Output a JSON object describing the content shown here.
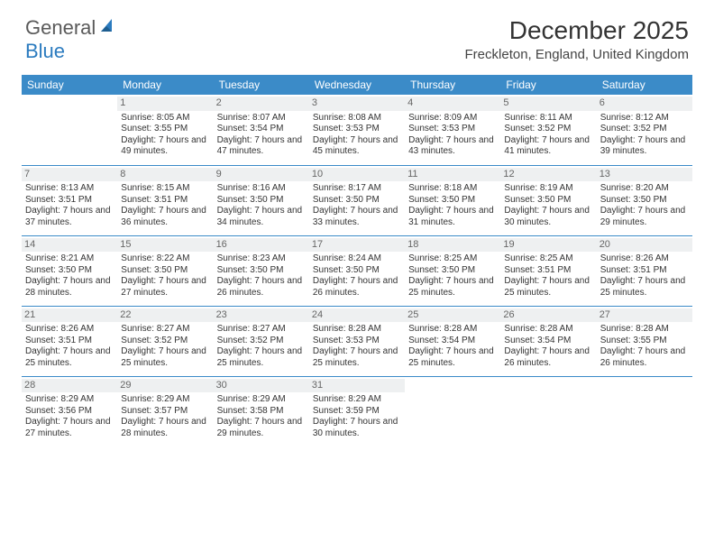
{
  "logo": {
    "part1": "General",
    "part2": "Blue"
  },
  "title": "December 2025",
  "location": "Freckleton, England, United Kingdom",
  "colors": {
    "header_bg": "#3b8bc8",
    "header_text": "#ffffff",
    "daynum_bg": "#eef0f1",
    "row_divider": "#3b8bc8",
    "logo_gray": "#5a5a5a",
    "logo_blue": "#2b7bbf",
    "body_text": "#333333"
  },
  "weekdays": [
    "Sunday",
    "Monday",
    "Tuesday",
    "Wednesday",
    "Thursday",
    "Friday",
    "Saturday"
  ],
  "weeks": [
    [
      null,
      {
        "n": "1",
        "sr": "Sunrise: 8:05 AM",
        "ss": "Sunset: 3:55 PM",
        "dl": "Daylight: 7 hours and 49 minutes."
      },
      {
        "n": "2",
        "sr": "Sunrise: 8:07 AM",
        "ss": "Sunset: 3:54 PM",
        "dl": "Daylight: 7 hours and 47 minutes."
      },
      {
        "n": "3",
        "sr": "Sunrise: 8:08 AM",
        "ss": "Sunset: 3:53 PM",
        "dl": "Daylight: 7 hours and 45 minutes."
      },
      {
        "n": "4",
        "sr": "Sunrise: 8:09 AM",
        "ss": "Sunset: 3:53 PM",
        "dl": "Daylight: 7 hours and 43 minutes."
      },
      {
        "n": "5",
        "sr": "Sunrise: 8:11 AM",
        "ss": "Sunset: 3:52 PM",
        "dl": "Daylight: 7 hours and 41 minutes."
      },
      {
        "n": "6",
        "sr": "Sunrise: 8:12 AM",
        "ss": "Sunset: 3:52 PM",
        "dl": "Daylight: 7 hours and 39 minutes."
      }
    ],
    [
      {
        "n": "7",
        "sr": "Sunrise: 8:13 AM",
        "ss": "Sunset: 3:51 PM",
        "dl": "Daylight: 7 hours and 37 minutes."
      },
      {
        "n": "8",
        "sr": "Sunrise: 8:15 AM",
        "ss": "Sunset: 3:51 PM",
        "dl": "Daylight: 7 hours and 36 minutes."
      },
      {
        "n": "9",
        "sr": "Sunrise: 8:16 AM",
        "ss": "Sunset: 3:50 PM",
        "dl": "Daylight: 7 hours and 34 minutes."
      },
      {
        "n": "10",
        "sr": "Sunrise: 8:17 AM",
        "ss": "Sunset: 3:50 PM",
        "dl": "Daylight: 7 hours and 33 minutes."
      },
      {
        "n": "11",
        "sr": "Sunrise: 8:18 AM",
        "ss": "Sunset: 3:50 PM",
        "dl": "Daylight: 7 hours and 31 minutes."
      },
      {
        "n": "12",
        "sr": "Sunrise: 8:19 AM",
        "ss": "Sunset: 3:50 PM",
        "dl": "Daylight: 7 hours and 30 minutes."
      },
      {
        "n": "13",
        "sr": "Sunrise: 8:20 AM",
        "ss": "Sunset: 3:50 PM",
        "dl": "Daylight: 7 hours and 29 minutes."
      }
    ],
    [
      {
        "n": "14",
        "sr": "Sunrise: 8:21 AM",
        "ss": "Sunset: 3:50 PM",
        "dl": "Daylight: 7 hours and 28 minutes."
      },
      {
        "n": "15",
        "sr": "Sunrise: 8:22 AM",
        "ss": "Sunset: 3:50 PM",
        "dl": "Daylight: 7 hours and 27 minutes."
      },
      {
        "n": "16",
        "sr": "Sunrise: 8:23 AM",
        "ss": "Sunset: 3:50 PM",
        "dl": "Daylight: 7 hours and 26 minutes."
      },
      {
        "n": "17",
        "sr": "Sunrise: 8:24 AM",
        "ss": "Sunset: 3:50 PM",
        "dl": "Daylight: 7 hours and 26 minutes."
      },
      {
        "n": "18",
        "sr": "Sunrise: 8:25 AM",
        "ss": "Sunset: 3:50 PM",
        "dl": "Daylight: 7 hours and 25 minutes."
      },
      {
        "n": "19",
        "sr": "Sunrise: 8:25 AM",
        "ss": "Sunset: 3:51 PM",
        "dl": "Daylight: 7 hours and 25 minutes."
      },
      {
        "n": "20",
        "sr": "Sunrise: 8:26 AM",
        "ss": "Sunset: 3:51 PM",
        "dl": "Daylight: 7 hours and 25 minutes."
      }
    ],
    [
      {
        "n": "21",
        "sr": "Sunrise: 8:26 AM",
        "ss": "Sunset: 3:51 PM",
        "dl": "Daylight: 7 hours and 25 minutes."
      },
      {
        "n": "22",
        "sr": "Sunrise: 8:27 AM",
        "ss": "Sunset: 3:52 PM",
        "dl": "Daylight: 7 hours and 25 minutes."
      },
      {
        "n": "23",
        "sr": "Sunrise: 8:27 AM",
        "ss": "Sunset: 3:52 PM",
        "dl": "Daylight: 7 hours and 25 minutes."
      },
      {
        "n": "24",
        "sr": "Sunrise: 8:28 AM",
        "ss": "Sunset: 3:53 PM",
        "dl": "Daylight: 7 hours and 25 minutes."
      },
      {
        "n": "25",
        "sr": "Sunrise: 8:28 AM",
        "ss": "Sunset: 3:54 PM",
        "dl": "Daylight: 7 hours and 25 minutes."
      },
      {
        "n": "26",
        "sr": "Sunrise: 8:28 AM",
        "ss": "Sunset: 3:54 PM",
        "dl": "Daylight: 7 hours and 26 minutes."
      },
      {
        "n": "27",
        "sr": "Sunrise: 8:28 AM",
        "ss": "Sunset: 3:55 PM",
        "dl": "Daylight: 7 hours and 26 minutes."
      }
    ],
    [
      {
        "n": "28",
        "sr": "Sunrise: 8:29 AM",
        "ss": "Sunset: 3:56 PM",
        "dl": "Daylight: 7 hours and 27 minutes."
      },
      {
        "n": "29",
        "sr": "Sunrise: 8:29 AM",
        "ss": "Sunset: 3:57 PM",
        "dl": "Daylight: 7 hours and 28 minutes."
      },
      {
        "n": "30",
        "sr": "Sunrise: 8:29 AM",
        "ss": "Sunset: 3:58 PM",
        "dl": "Daylight: 7 hours and 29 minutes."
      },
      {
        "n": "31",
        "sr": "Sunrise: 8:29 AM",
        "ss": "Sunset: 3:59 PM",
        "dl": "Daylight: 7 hours and 30 minutes."
      },
      null,
      null,
      null
    ]
  ]
}
